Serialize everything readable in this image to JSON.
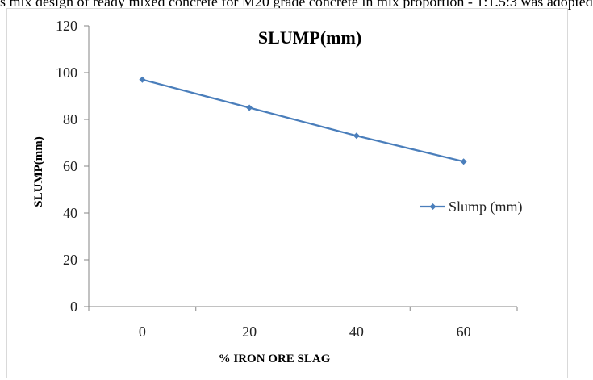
{
  "top_text": "s mix design of ready mixed concrete for M20 grade concrete in mix proportion - 1:1.5:3 was adopted",
  "chart_data": {
    "type": "line",
    "title": "SLUMP(mm)",
    "xlabel": "% IRON ORE SLAG",
    "ylabel": "SLUMP(mm)",
    "categories": [
      "0",
      "20",
      "40",
      "60"
    ],
    "series": [
      {
        "name": "Slump (mm)",
        "values": [
          97,
          85,
          73,
          62
        ],
        "color": "#4a7ebb"
      }
    ],
    "ylim": [
      0,
      120
    ],
    "yticks": [
      0,
      20,
      40,
      60,
      80,
      100,
      120
    ],
    "legend": "right",
    "grid": false
  }
}
